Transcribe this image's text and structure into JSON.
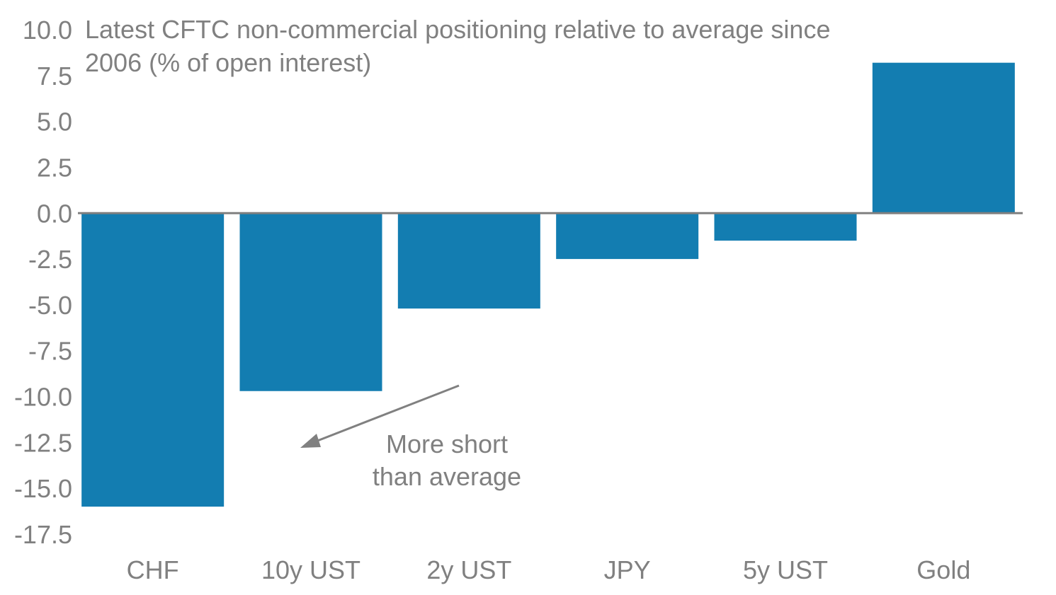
{
  "chart_data": {
    "type": "bar",
    "title_lines": [
      "Latest CFTC non-commercial positioning relative to average since",
      "2006 (% of open interest)"
    ],
    "categories": [
      "CHF",
      "10y UST",
      "2y UST",
      "JPY",
      "5y UST",
      "Gold"
    ],
    "values": [
      -16.0,
      -9.7,
      -5.2,
      -2.5,
      -1.5,
      8.2
    ],
    "ylim": [
      -17.5,
      10.0
    ],
    "yticks": [
      "10.0",
      "7.5",
      "5.0",
      "2.5",
      "0.0",
      "-2.5",
      "-5.0",
      "-7.5",
      "-10.0",
      "-12.5",
      "-15.0",
      "-17.5"
    ],
    "ytick_values": [
      10.0,
      7.5,
      5.0,
      2.5,
      0.0,
      -2.5,
      -5.0,
      -7.5,
      -10.0,
      -12.5,
      -15.0,
      -17.5
    ],
    "grid": false,
    "legend": false,
    "annotation": {
      "lines": [
        "More short",
        "than average"
      ],
      "arrow": true
    },
    "colors": {
      "bar": "#137db1",
      "text": "#808080",
      "axis": "#808080"
    }
  }
}
